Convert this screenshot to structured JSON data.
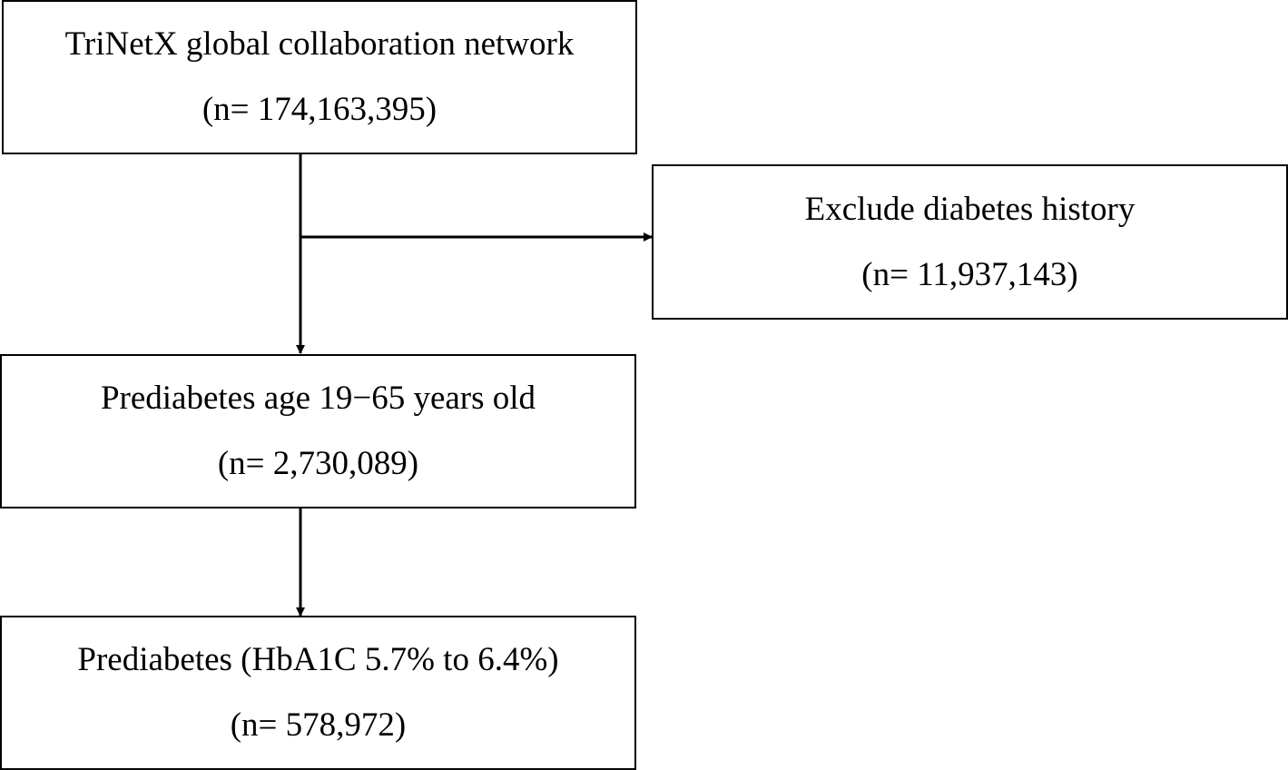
{
  "nodes": [
    {
      "label": "TriNetX global collaboration network",
      "count": "(n= 174,163,395)"
    },
    {
      "label": "Exclude diabetes history",
      "count": "(n= 11,937,143)"
    },
    {
      "label": "Prediabetes age 19−65 years old",
      "count": "(n= 2,730,089)"
    },
    {
      "label": "Prediabetes (HbA1C 5.7% to 6.4%)",
      "count": "(n= 578,972)"
    }
  ]
}
